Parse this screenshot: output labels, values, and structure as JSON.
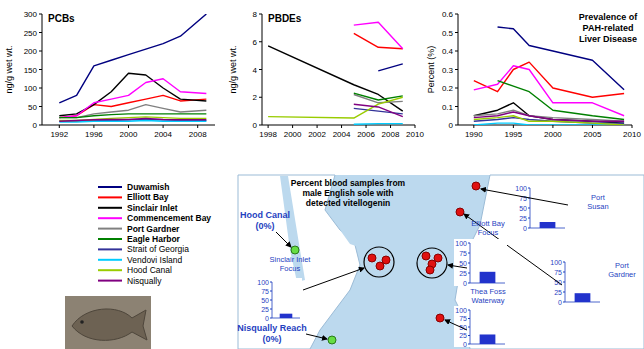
{
  "chart_data": [
    {
      "type": "line",
      "title": "PCBs",
      "y_label": "ng/g wet wt.",
      "grid": false,
      "x": [
        1992,
        1994,
        1996,
        1998,
        2000,
        2002,
        2004,
        2006,
        2009
      ],
      "xlim": [
        1990,
        2010
      ],
      "xticks": [
        1992,
        1996,
        2000,
        2004,
        2008
      ],
      "ylim": [
        0,
        300
      ],
      "yticks": [
        0,
        50,
        100,
        150,
        200,
        250,
        300
      ],
      "series": [
        {
          "name": "Duwamish",
          "color": "#000080",
          "values": [
            60,
            80,
            160,
            175,
            190,
            205,
            220,
            240,
            300
          ]
        },
        {
          "name": "Elliott Bay",
          "color": "#ff0000",
          "values": [
            20,
            25,
            55,
            50,
            60,
            70,
            80,
            65,
            70
          ]
        },
        {
          "name": "Sinclair Inlet",
          "color": "#000000",
          "values": [
            25,
            30,
            55,
            90,
            140,
            135,
            100,
            70,
            65
          ]
        },
        {
          "name": "Commencement Bay",
          "color": "#ff00ff",
          "values": [
            20,
            25,
            60,
            70,
            80,
            115,
            125,
            90,
            85
          ]
        },
        {
          "name": "Port Gardner",
          "color": "#808080",
          "values": [
            20,
            20,
            30,
            35,
            40,
            55,
            45,
            35,
            40
          ]
        },
        {
          "name": "Eagle Harbor",
          "color": "#008000",
          "values": [
            20,
            20,
            25,
            28,
            30,
            30,
            30,
            30,
            30
          ]
        },
        {
          "name": "Strait of Georgia",
          "color": "#333399",
          "values": [
            10,
            10,
            12,
            12,
            14,
            15,
            14,
            12,
            12
          ]
        },
        {
          "name": "Vendovi Island",
          "color": "#00ccff",
          "values": [
            8,
            8,
            10,
            10,
            10,
            12,
            10,
            10,
            10
          ]
        },
        {
          "name": "Hood Canal",
          "color": "#99cc00",
          "values": [
            12,
            12,
            15,
            18,
            20,
            22,
            20,
            18,
            18
          ]
        },
        {
          "name": "Nisqually",
          "color": "#800080",
          "values": [
            10,
            12,
            14,
            15,
            15,
            18,
            15,
            14,
            14
          ]
        }
      ]
    },
    {
      "type": "line",
      "title": "PBDEs",
      "y_label": "ng/g wet wt.",
      "grid": false,
      "x": [
        1998,
        2005,
        2007,
        2009
      ],
      "xlim": [
        1997.5,
        2010
      ],
      "xticks": [
        1998,
        2000,
        2002,
        2004,
        2006,
        2008,
        2010
      ],
      "ylim": [
        0,
        8
      ],
      "yticks": [
        0,
        2,
        4,
        6,
        8
      ],
      "series": [
        {
          "name": "Duwamish",
          "color": "#000080",
          "values": [
            null,
            null,
            3.9,
            4.4
          ]
        },
        {
          "name": "Elliott Bay",
          "color": "#ff0000",
          "values": [
            null,
            6.6,
            5.6,
            5.5
          ]
        },
        {
          "name": "Sinclair Inlet",
          "color": "#000000",
          "values": [
            5.7,
            2.9,
            2.2,
            1.0
          ]
        },
        {
          "name": "Commencement Bay",
          "color": "#ff00ff",
          "values": [
            null,
            7.2,
            7.4,
            5.5
          ]
        },
        {
          "name": "Port Gardner",
          "color": "#808080",
          "values": [
            null,
            2.2,
            1.6,
            1.7
          ]
        },
        {
          "name": "Eagle Harbor",
          "color": "#008000",
          "values": [
            null,
            2.3,
            1.8,
            2.1
          ]
        },
        {
          "name": "Strait of Georgia",
          "color": "#333399",
          "values": [
            null,
            1.2,
            1.0,
            0.8
          ]
        },
        {
          "name": "Vendovi Island",
          "color": "#00ccff",
          "values": [
            null,
            0.05,
            0.1,
            0.1
          ]
        },
        {
          "name": "Hood Canal",
          "color": "#99cc00",
          "values": [
            0.6,
            0.5,
            1.5,
            2.0
          ]
        },
        {
          "name": "Nisqually",
          "color": "#800080",
          "values": [
            null,
            1.5,
            1.3,
            0.6
          ]
        }
      ]
    },
    {
      "type": "line",
      "title": "Prevalence of PAH-related Liver Disease",
      "y_label": "Percent (%)",
      "grid": false,
      "x": [
        1990,
        1993,
        1995,
        1997,
        2000,
        2005,
        2009
      ],
      "xlim": [
        1988,
        2010
      ],
      "xticks": [
        1990,
        1995,
        2000,
        2005,
        2010
      ],
      "ylim": [
        0,
        0.6
      ],
      "yticks": [
        0,
        0.1,
        0.2,
        0.3,
        0.4,
        0.5,
        0.6
      ],
      "series": [
        {
          "name": "Duwamish",
          "color": "#000080",
          "values": [
            null,
            0.53,
            0.52,
            0.43,
            0.4,
            0.35,
            0.19
          ]
        },
        {
          "name": "Elliott Bay",
          "color": "#ff0000",
          "values": [
            0.24,
            0.18,
            0.3,
            0.34,
            0.2,
            0.15,
            0.17
          ]
        },
        {
          "name": "Sinclair Inlet",
          "color": "#000000",
          "values": [
            0.05,
            0.08,
            0.12,
            0.05,
            0.03,
            0.02,
            0.01
          ]
        },
        {
          "name": "Commencement Bay",
          "color": "#ff00ff",
          "values": [
            0.19,
            0.22,
            0.32,
            0.3,
            0.12,
            0.12,
            0.05
          ]
        },
        {
          "name": "Port Gardner",
          "color": "#808080",
          "values": [
            0.05,
            0.06,
            0.08,
            0.05,
            0.04,
            0.03,
            0.02
          ]
        },
        {
          "name": "Eagle Harbor",
          "color": "#008000",
          "values": [
            null,
            0.24,
            0.21,
            0.18,
            0.08,
            0.05,
            0.03
          ]
        },
        {
          "name": "Strait of Georgia",
          "color": "#333399",
          "values": [
            0.02,
            0.03,
            0.04,
            0.03,
            0.02,
            0.01,
            0.01
          ]
        },
        {
          "name": "Vendovi Island",
          "color": "#00ccff",
          "values": [
            0,
            0.01,
            0.01,
            0,
            0,
            0,
            0
          ]
        },
        {
          "name": "Hood Canal",
          "color": "#99cc00",
          "values": [
            0.03,
            0.04,
            0.05,
            0.02,
            0.02,
            0.01,
            0
          ]
        },
        {
          "name": "Nisqually",
          "color": "#800080",
          "values": [
            0.04,
            0.05,
            0.07,
            0.05,
            0.03,
            0.02,
            0.02
          ]
        }
      ]
    },
    {
      "type": "bar",
      "title": "Port Susan",
      "categories": [
        null
      ],
      "values": [
        15
      ],
      "color": "#2233cc",
      "ylim": [
        0,
        100
      ],
      "yticks": [
        0,
        25,
        50,
        75,
        100
      ]
    },
    {
      "type": "bar",
      "title": "Port Gardner",
      "categories": [
        null
      ],
      "values": [
        22
      ],
      "color": "#2233cc",
      "ylim": [
        0,
        100
      ],
      "yticks": [
        0,
        25,
        50,
        75,
        100
      ]
    },
    {
      "type": "bar",
      "title": "Elliott Bay Focus",
      "categories": [
        null
      ],
      "values": [
        28
      ],
      "color": "#2233cc",
      "ylim": [
        0,
        100
      ],
      "yticks": [
        0,
        25,
        50,
        75,
        100
      ]
    },
    {
      "type": "bar",
      "title": "Sinclair Inlet Focus",
      "categories": [
        null
      ],
      "values": [
        12
      ],
      "color": "#2233cc",
      "ylim": [
        0,
        100
      ],
      "yticks": [
        0,
        25,
        50,
        75,
        100
      ]
    },
    {
      "type": "bar",
      "title": "Thea Foss Waterway",
      "categories": [
        null
      ],
      "values": [
        28
      ],
      "color": "#2233cc",
      "ylim": [
        0,
        100
      ],
      "yticks": [
        0,
        25,
        50,
        75,
        100
      ]
    }
  ],
  "map": {
    "title": "Percent blood samples from male English sole with detected vitellogenin",
    "sites": [
      "Hood Canal (0%)",
      "Nisqually Reach (0%)"
    ]
  }
}
